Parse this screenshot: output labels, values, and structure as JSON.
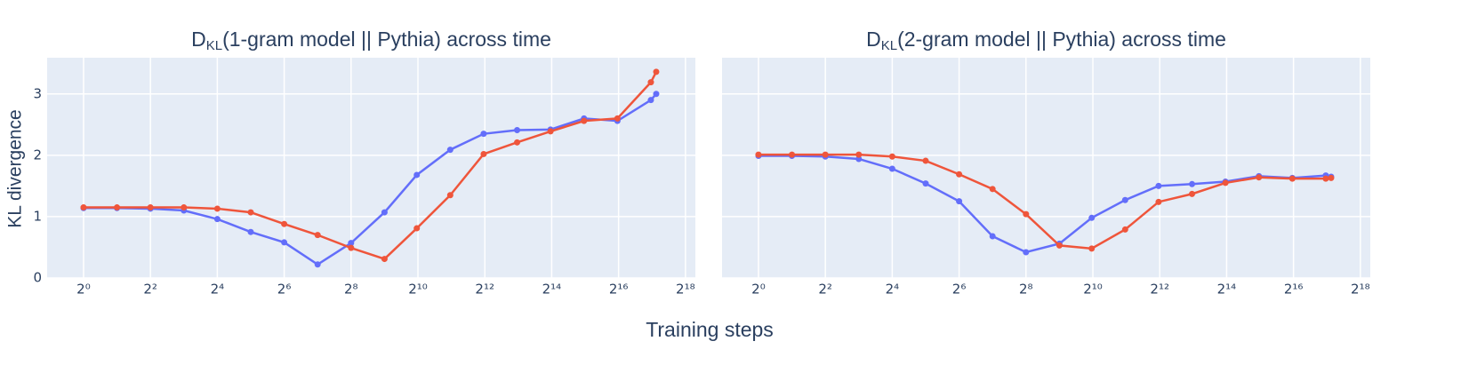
{
  "shared": {
    "xlabel": "Training steps",
    "ylabel": "KL divergence"
  },
  "chart_data": [
    {
      "type": "line",
      "title": {
        "base": "D",
        "subscript": "KL",
        "text": "(1-gram model || Pythia) across time"
      },
      "x": [
        1,
        2,
        4,
        8,
        16,
        32,
        64,
        128,
        256,
        512,
        1000,
        2000,
        4000,
        8000,
        16000,
        32000,
        64000,
        128000,
        143000
      ],
      "series": [
        {
          "color": "#636efa",
          "values": [
            1.14,
            1.14,
            1.13,
            1.1,
            0.96,
            0.75,
            0.58,
            0.22,
            0.57,
            1.07,
            1.68,
            2.09,
            2.35,
            2.41,
            2.42,
            2.6,
            2.56,
            2.9,
            3.0
          ]
        },
        {
          "color": "#ef553b",
          "values": [
            1.15,
            1.15,
            1.15,
            1.15,
            1.13,
            1.07,
            0.88,
            0.7,
            0.49,
            0.31,
            0.81,
            1.35,
            2.02,
            2.21,
            2.39,
            2.56,
            2.6,
            3.19,
            3.36
          ]
        }
      ],
      "xscale": "log2",
      "xlim": [
        0.47,
        322000
      ],
      "xticks": [
        {
          "value": 1,
          "label": "2⁰"
        },
        {
          "value": 4,
          "label": "2²"
        },
        {
          "value": 16,
          "label": "2⁴"
        },
        {
          "value": 64,
          "label": "2⁶"
        },
        {
          "value": 256,
          "label": "2⁸"
        },
        {
          "value": 1024,
          "label": "2¹⁰"
        },
        {
          "value": 4096,
          "label": "2¹²"
        },
        {
          "value": 16384,
          "label": "2¹⁴"
        },
        {
          "value": 65536,
          "label": "2¹⁶"
        },
        {
          "value": 262144,
          "label": "2¹⁸"
        }
      ],
      "ylim": [
        0,
        3.59
      ],
      "yticks": [
        0,
        1,
        2,
        3
      ],
      "show_ytick_labels": true,
      "grid": true
    },
    {
      "type": "line",
      "title": {
        "base": "D",
        "subscript": "KL",
        "text": "(2-gram model || Pythia) across time"
      },
      "x": [
        1,
        2,
        4,
        8,
        16,
        32,
        64,
        128,
        256,
        512,
        1000,
        2000,
        4000,
        8000,
        16000,
        32000,
        64000,
        128000,
        143000
      ],
      "series": [
        {
          "color": "#636efa",
          "values": [
            1.99,
            1.99,
            1.98,
            1.94,
            1.78,
            1.54,
            1.25,
            0.68,
            0.42,
            0.56,
            0.98,
            1.27,
            1.5,
            1.53,
            1.57,
            1.66,
            1.63,
            1.67,
            1.65
          ]
        },
        {
          "color": "#ef553b",
          "values": [
            2.01,
            2.01,
            2.01,
            2.01,
            1.98,
            1.91,
            1.69,
            1.45,
            1.04,
            0.53,
            0.48,
            0.79,
            1.24,
            1.37,
            1.55,
            1.64,
            1.62,
            1.62,
            1.63
          ]
        }
      ],
      "xscale": "log2",
      "xlim": [
        0.47,
        322000
      ],
      "xticks": [
        {
          "value": 1,
          "label": "2⁰"
        },
        {
          "value": 4,
          "label": "2²"
        },
        {
          "value": 16,
          "label": "2⁴"
        },
        {
          "value": 64,
          "label": "2⁶"
        },
        {
          "value": 256,
          "label": "2⁸"
        },
        {
          "value": 1024,
          "label": "2¹⁰"
        },
        {
          "value": 4096,
          "label": "2¹²"
        },
        {
          "value": 16384,
          "label": "2¹⁴"
        },
        {
          "value": 65536,
          "label": "2¹⁶"
        },
        {
          "value": 262144,
          "label": "2¹⁸"
        }
      ],
      "ylim": [
        0,
        3.59
      ],
      "yticks": [
        0,
        1,
        2,
        3
      ],
      "show_ytick_labels": false,
      "grid": true
    }
  ]
}
